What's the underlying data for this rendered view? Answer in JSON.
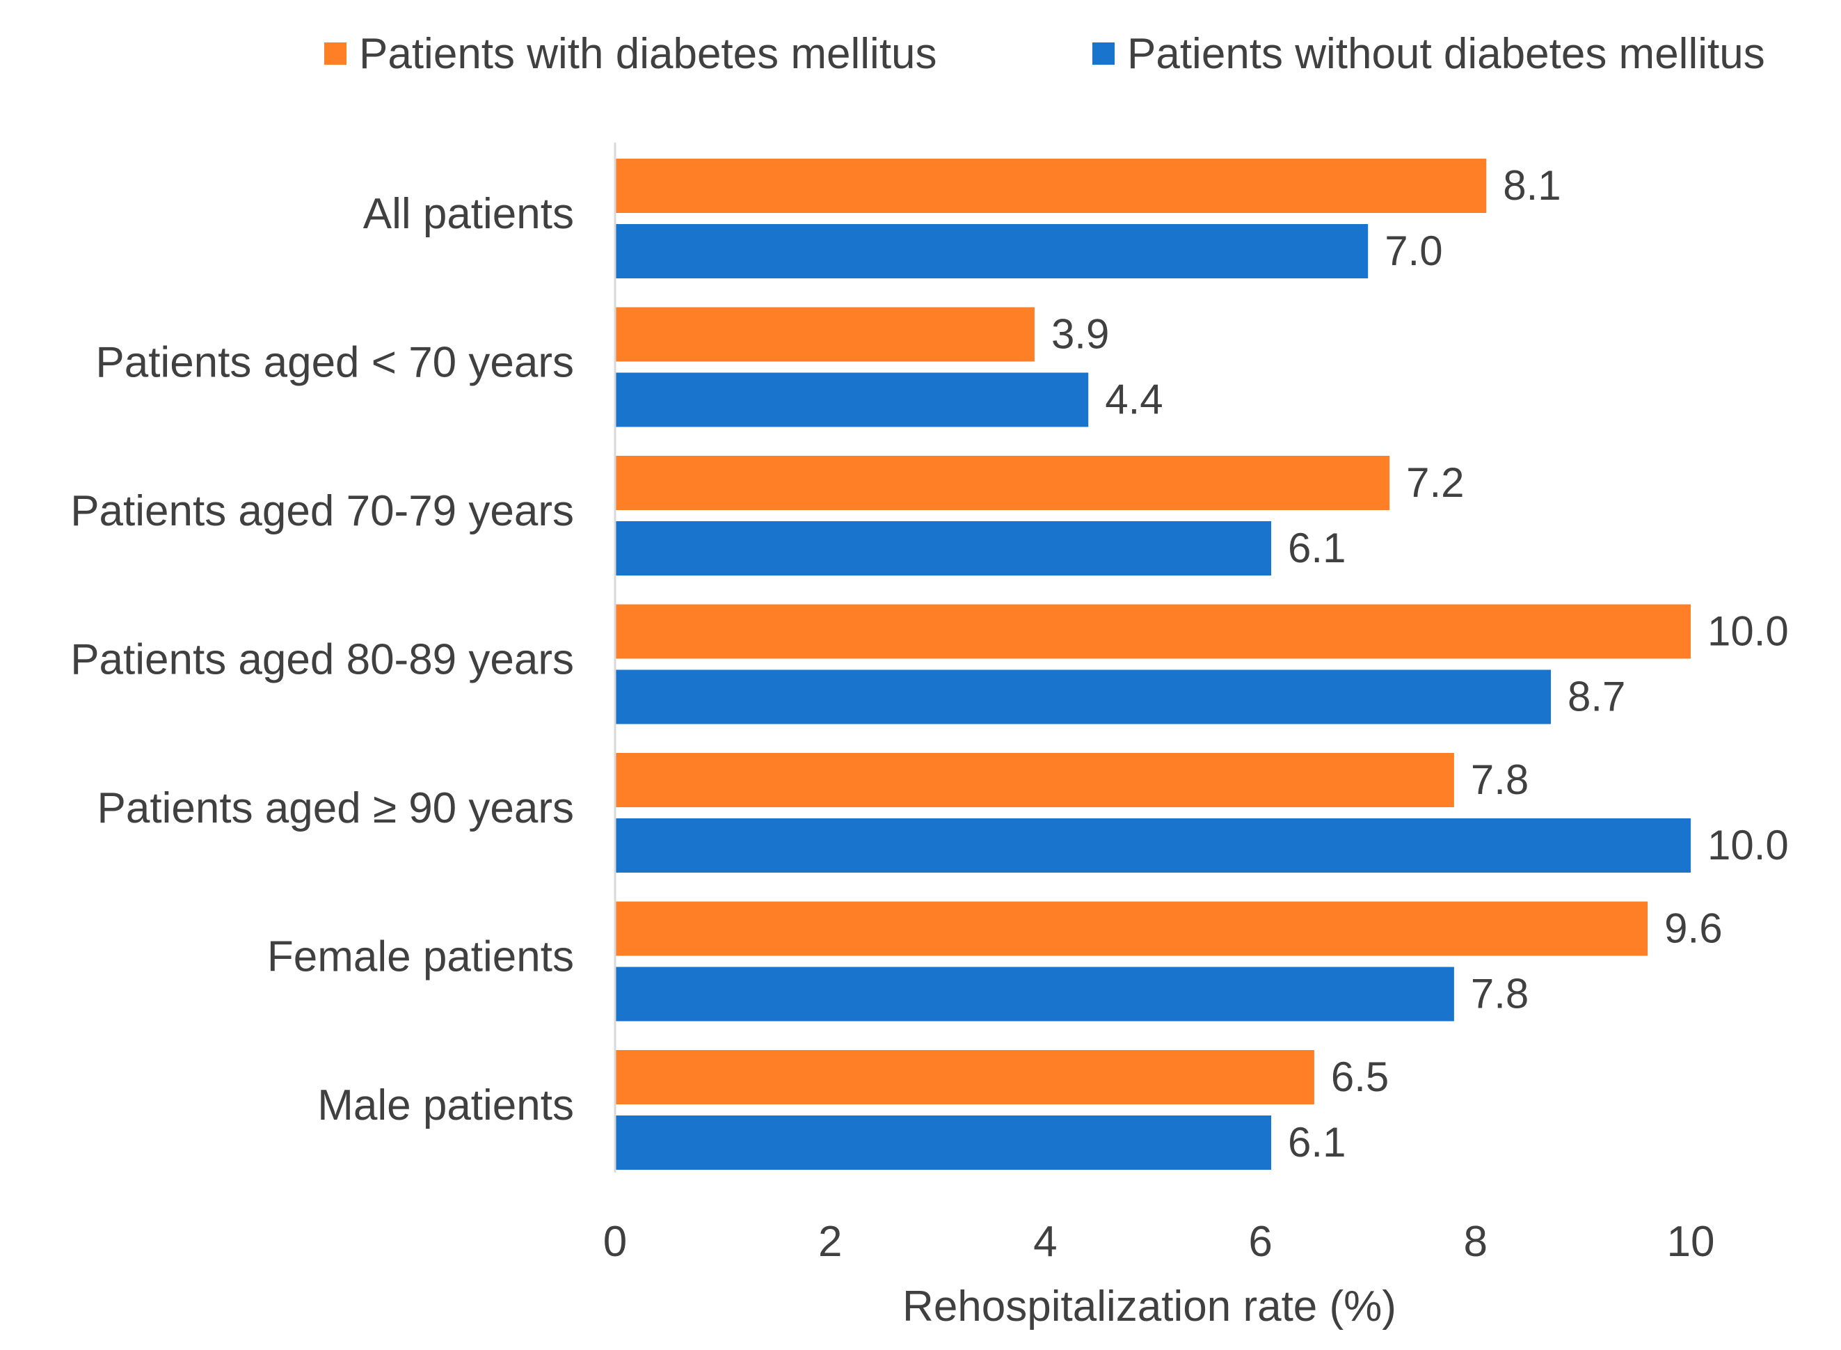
{
  "chart_data": {
    "type": "bar",
    "orientation": "horizontal",
    "title": "",
    "xlabel": "Rehospitalization rate (%)",
    "ylabel": "",
    "xlim": [
      0,
      10
    ],
    "xticks": [
      0,
      2,
      4,
      6,
      8,
      10
    ],
    "grid": false,
    "legend_position": "top",
    "categories": [
      "All patients",
      "Patients aged < 70 years",
      "Patients aged 70-79 years",
      "Patients aged 80-89 years",
      "Patients aged ≥ 90 years",
      "Female patients",
      "Male patients"
    ],
    "series": [
      {
        "name": "Patients with diabetes mellitus",
        "color": "#FF7F27",
        "values": [
          8.1,
          3.9,
          7.2,
          10.0,
          7.8,
          9.6,
          6.5
        ],
        "labels": [
          "8.1",
          "3.9",
          "7.2",
          "10.0",
          "7.8",
          "9.6",
          "6.5"
        ]
      },
      {
        "name": "Patients without diabetes mellitus",
        "color": "#1874CD",
        "values": [
          7.0,
          4.4,
          6.1,
          8.7,
          10.0,
          7.8,
          6.1
        ],
        "labels": [
          "7.0",
          "4.4",
          "6.1",
          "8.7",
          "10.0",
          "7.8",
          "6.1"
        ]
      }
    ]
  }
}
